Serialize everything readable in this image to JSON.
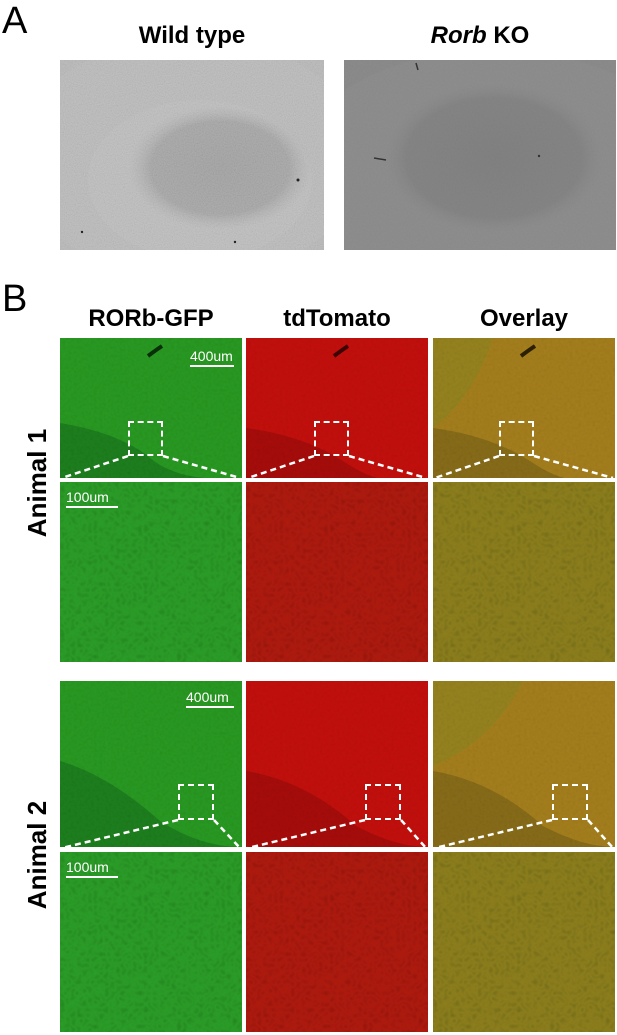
{
  "panel_a": {
    "letter": "A",
    "headers": {
      "left": "Wild type",
      "right_italic": "Rorb",
      "right_rest": " KO"
    }
  },
  "panel_b": {
    "letter": "B",
    "columns": [
      "RORb-GFP",
      "tdTomato",
      "Overlay"
    ],
    "rows": [
      "Animal 1",
      "Animal 2"
    ],
    "scale_low": "400um",
    "scale_high": "100um"
  },
  "colors": {
    "gfp": "#1e8f1a",
    "tomato": "#b50f0a",
    "overlay": "#8a7a22",
    "wildtype_bg": "#c9c9c9",
    "ko_bg": "#8e8e8e"
  }
}
